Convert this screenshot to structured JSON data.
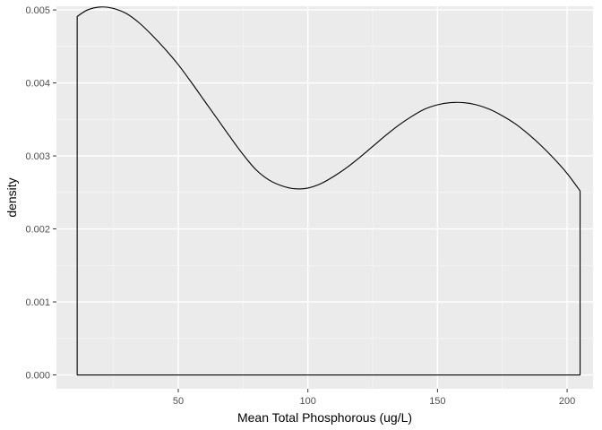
{
  "chart_data": {
    "type": "area",
    "title": "",
    "xlabel": "Mean Total Phosphorous (ug/L)",
    "ylabel": "density",
    "xlim": [
      3,
      210
    ],
    "ylim": [
      -0.00019,
      0.00505
    ],
    "x_ticks": [
      50,
      100,
      150,
      200
    ],
    "x_tick_labels": [
      "50",
      "100",
      "150",
      "200"
    ],
    "y_ticks": [
      0.0,
      0.001,
      0.002,
      0.003,
      0.004,
      0.005
    ],
    "y_tick_labels": [
      "0.000",
      "0.001",
      "0.002",
      "0.003",
      "0.004",
      "0.005"
    ],
    "grid": true,
    "legend": "none",
    "colors": {
      "panel_background": "#ebebeb",
      "major_grid": "#ffffff",
      "minor_grid": "#f5f5f5",
      "curve": "#000000",
      "fill": "none"
    },
    "series": [
      {
        "x": [
          11,
          15,
          20,
          25,
          30,
          35,
          40,
          45,
          50,
          55,
          60,
          65,
          70,
          75,
          80,
          85,
          90,
          95,
          100,
          105,
          110,
          115,
          120,
          125,
          130,
          135,
          140,
          145,
          150,
          155,
          160,
          165,
          170,
          175,
          180,
          185,
          190,
          195,
          200,
          205
        ],
        "y": [
          0.00491,
          0.005,
          0.00504,
          0.00502,
          0.00495,
          0.00482,
          0.00465,
          0.00446,
          0.00425,
          0.00401,
          0.00376,
          0.00351,
          0.00326,
          0.00302,
          0.00281,
          0.00267,
          0.00259,
          0.00255,
          0.00256,
          0.00262,
          0.00272,
          0.00284,
          0.00298,
          0.00313,
          0.00328,
          0.00342,
          0.00354,
          0.00364,
          0.0037,
          0.00373,
          0.00373,
          0.0037,
          0.00364,
          0.00355,
          0.00344,
          0.0033,
          0.00314,
          0.00296,
          0.00276,
          0.00252
        ]
      }
    ]
  }
}
